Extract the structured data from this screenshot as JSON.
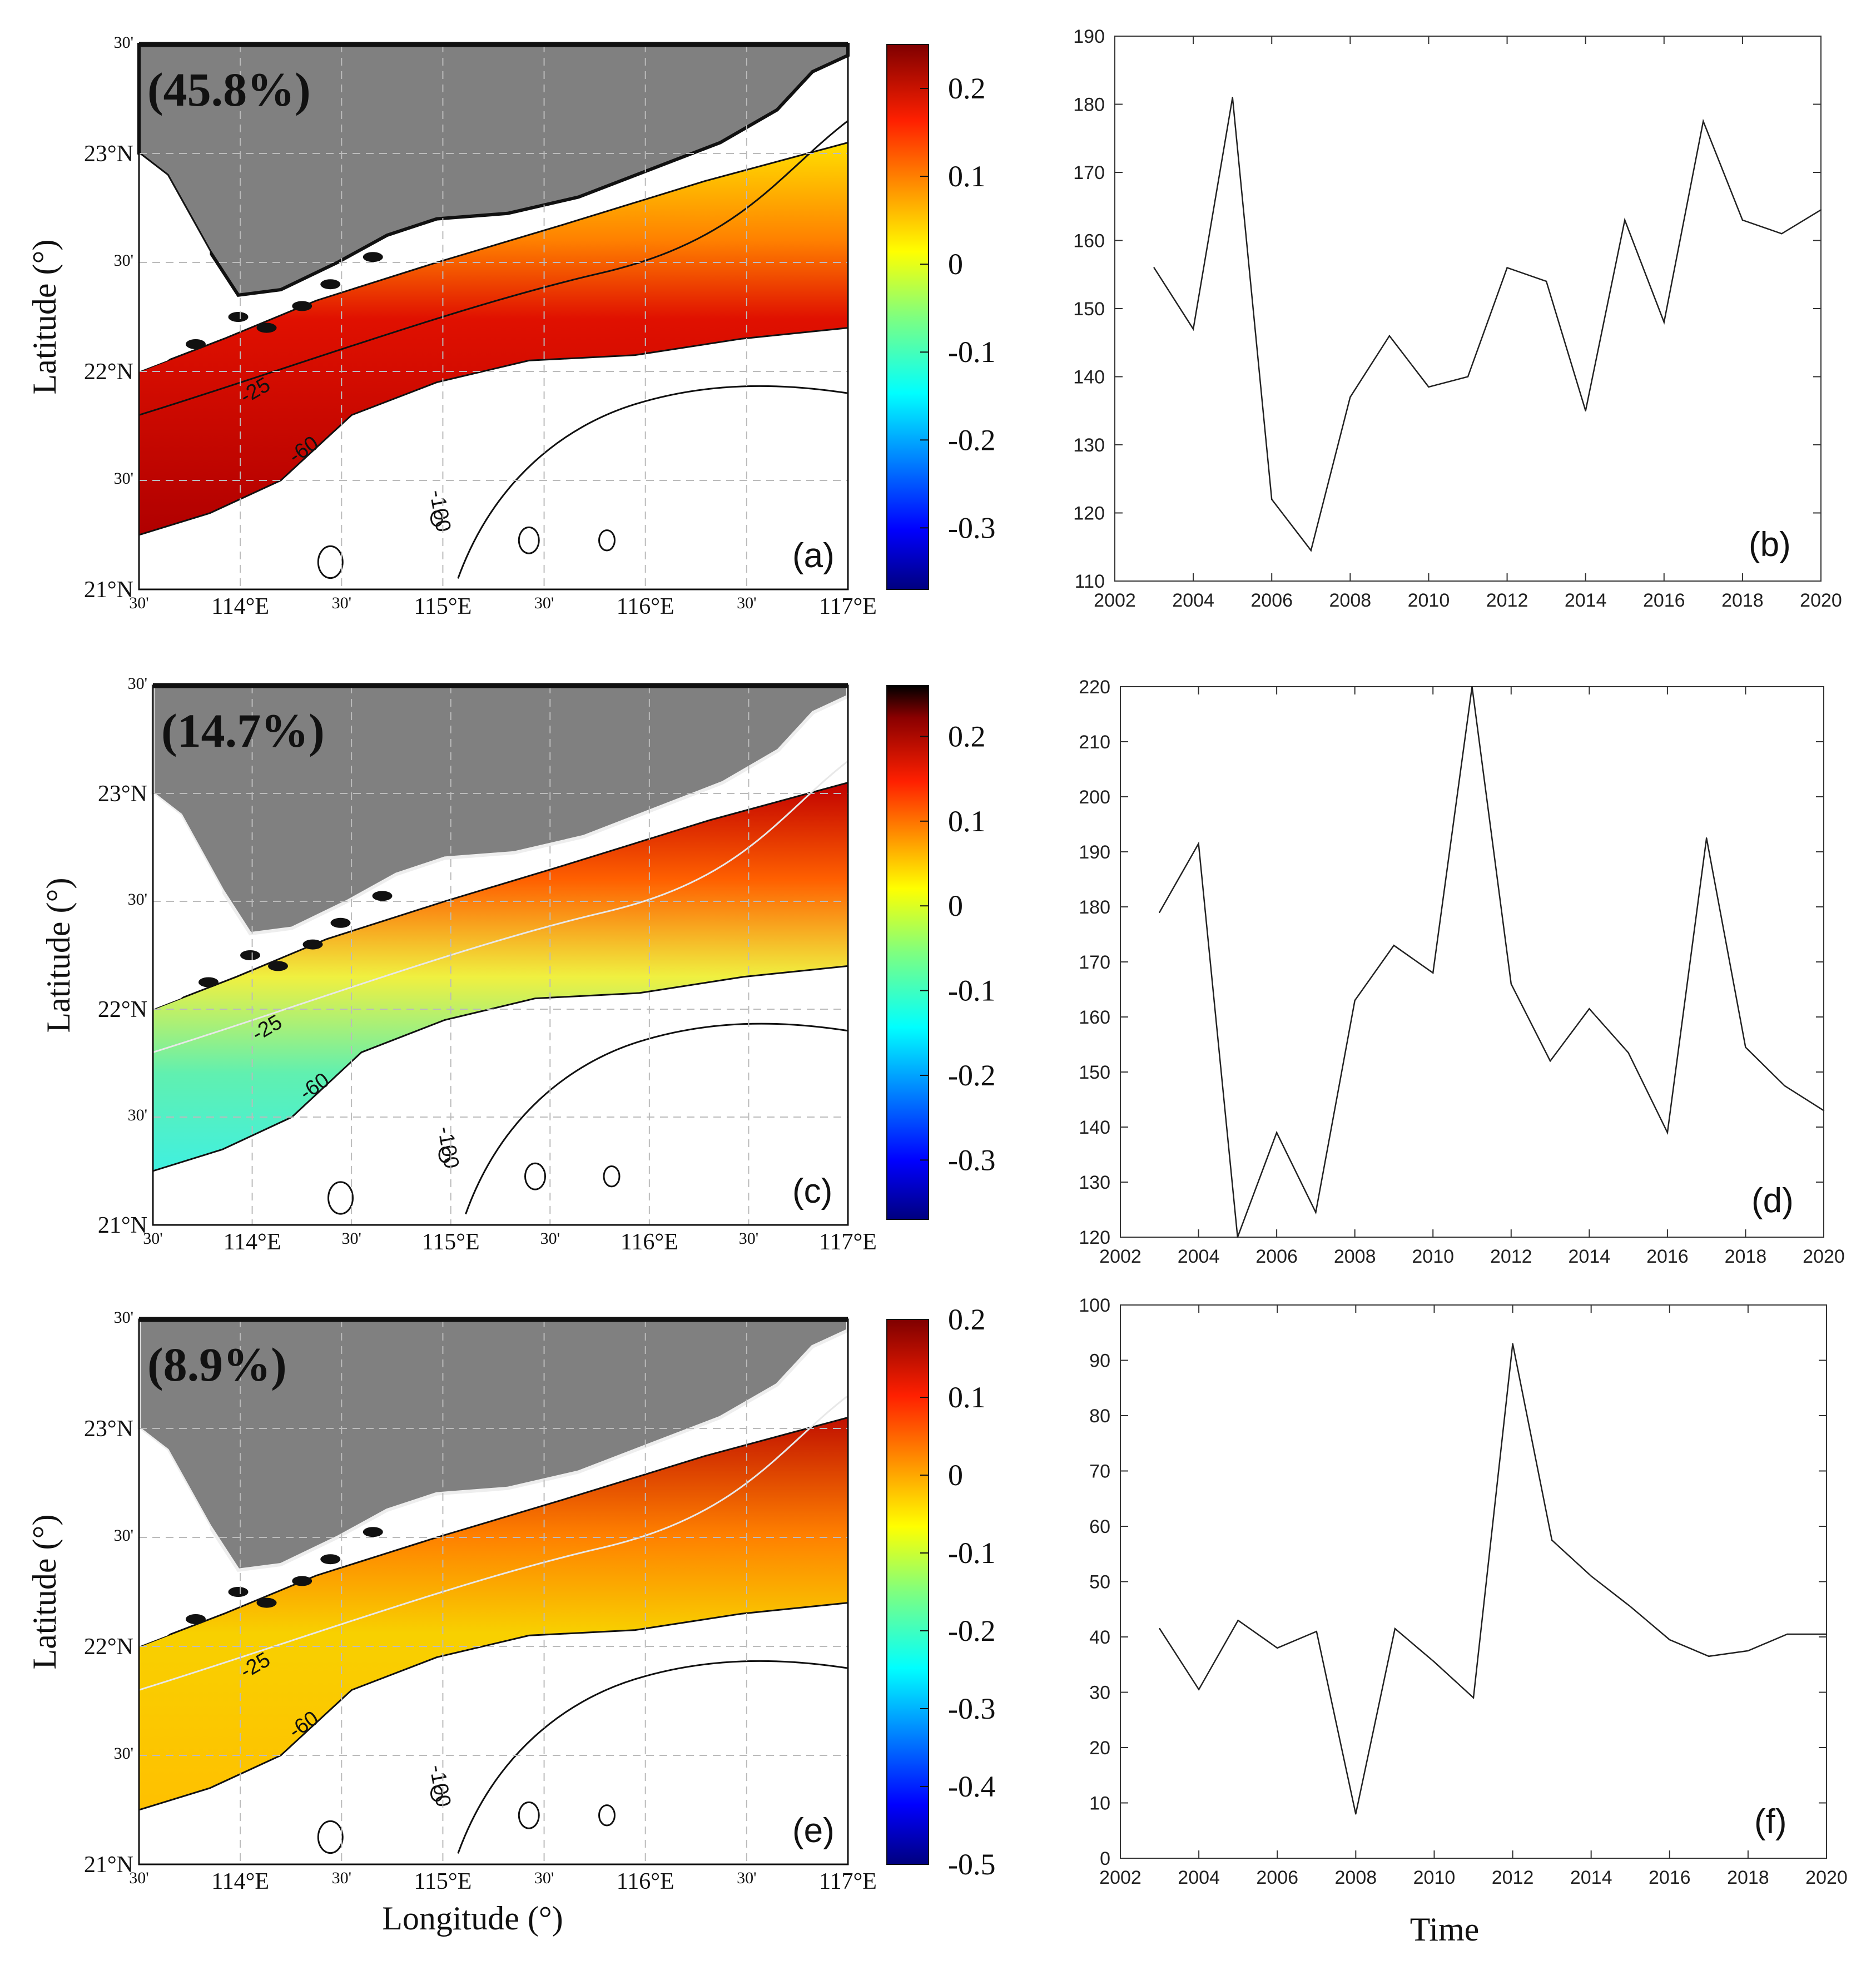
{
  "colors": {
    "land": "#808080",
    "line": "#111111",
    "white": "#ffffff",
    "grid": "#bbbbbb"
  },
  "axes": {
    "map_xlabel": "Longitude (°)",
    "map_ylabel": "Latitude (°)",
    "ts_xlabel": "Time"
  },
  "map_ticks": {
    "x": [
      "30'",
      "114°E",
      "30'",
      "115°E",
      "30'",
      "116°E",
      "30'",
      "117°E"
    ],
    "y": [
      "30'",
      "23°N",
      "30'",
      "22°N",
      "30'",
      "21°N"
    ]
  },
  "contours": [
    "-25",
    "-60",
    "-100"
  ],
  "chart_data": [
    {
      "type": "heatmap",
      "panel": "(a)",
      "variance_explained": "(45.8%)",
      "colorbar_ticks": [
        "0.2",
        "0.1",
        "0",
        "-0.1",
        "-0.2",
        "-0.3"
      ],
      "colorbar_range": [
        -0.37,
        0.25
      ]
    },
    {
      "type": "line",
      "panel": "(b)",
      "x": [
        2003,
        2004,
        2005,
        2006,
        2007,
        2008,
        2009,
        2010,
        2011,
        2012,
        2013,
        2014,
        2015,
        2016,
        2017,
        2018,
        2019,
        2020
      ],
      "y": [
        156,
        147,
        181,
        122,
        114.5,
        137,
        146,
        138.5,
        140,
        156,
        154,
        135,
        163,
        148,
        177.5,
        163,
        161,
        164.5
      ],
      "xlim": [
        2002,
        2020
      ],
      "ylim": [
        110,
        190
      ],
      "xticks": [
        "2002",
        "2004",
        "2006",
        "2008",
        "2010",
        "2012",
        "2014",
        "2016",
        "2018",
        "2020"
      ],
      "yticks": [
        "110",
        "120",
        "130",
        "140",
        "150",
        "160",
        "170",
        "180",
        "190"
      ]
    },
    {
      "type": "heatmap",
      "panel": "(c)",
      "variance_explained": "(14.7%)",
      "colorbar_ticks": [
        "0.2",
        "0.1",
        "0",
        "-0.1",
        "-0.2",
        "-0.3"
      ],
      "colorbar_range": [
        -0.37,
        0.26
      ]
    },
    {
      "type": "line",
      "panel": "(d)",
      "x": [
        2003,
        2004,
        2005,
        2006,
        2007,
        2008,
        2009,
        2010,
        2011,
        2012,
        2013,
        2014,
        2015,
        2016,
        2017,
        2018,
        2019,
        2020
      ],
      "y": [
        179,
        191.5,
        120,
        139,
        124.5,
        163,
        173,
        168,
        220,
        166,
        152,
        161.5,
        153.5,
        139,
        192.5,
        154.5,
        147.5,
        143
      ],
      "xlim": [
        2002,
        2020
      ],
      "ylim": [
        120,
        220
      ],
      "xticks": [
        "2002",
        "2004",
        "2006",
        "2008",
        "2010",
        "2012",
        "2014",
        "2016",
        "2018",
        "2020"
      ],
      "yticks": [
        "120",
        "130",
        "140",
        "150",
        "160",
        "170",
        "180",
        "190",
        "200",
        "210",
        "220"
      ]
    },
    {
      "type": "heatmap",
      "panel": "(e)",
      "variance_explained": "(8.9%)",
      "colorbar_ticks": [
        "0.2",
        "0.1",
        "0",
        "-0.1",
        "-0.2",
        "-0.3",
        "-0.4",
        "-0.5"
      ],
      "colorbar_range": [
        -0.5,
        0.2
      ]
    },
    {
      "type": "line",
      "panel": "(f)",
      "x": [
        2003,
        2004,
        2005,
        2006,
        2007,
        2008,
        2009,
        2010,
        2011,
        2012,
        2013,
        2014,
        2015,
        2016,
        2017,
        2018,
        2019,
        2020
      ],
      "y": [
        41.5,
        30.5,
        43,
        38,
        41,
        8,
        41.5,
        35.5,
        29,
        93,
        57.5,
        51,
        45.5,
        39.5,
        36.5,
        37.5,
        40.5,
        40.5
      ],
      "xlim": [
        2002,
        2020
      ],
      "ylim": [
        0,
        100
      ],
      "xticks": [
        "2002",
        "2004",
        "2006",
        "2008",
        "2010",
        "2012",
        "2014",
        "2016",
        "2018",
        "2020"
      ],
      "yticks": [
        "0",
        "10",
        "20",
        "30",
        "40",
        "50",
        "60",
        "70",
        "80",
        "90",
        "100"
      ]
    }
  ]
}
